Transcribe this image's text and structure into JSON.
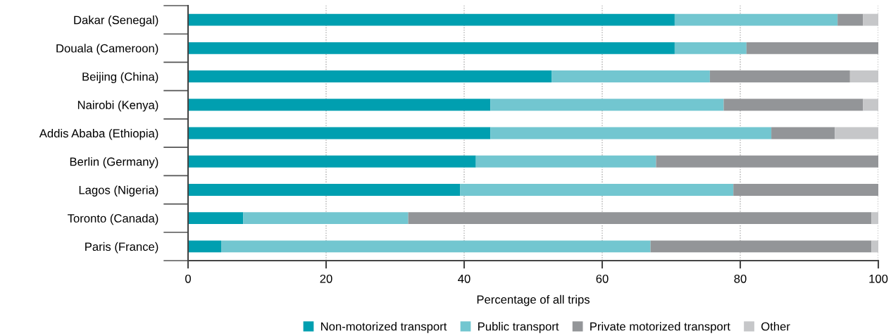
{
  "chart_data": {
    "type": "bar",
    "orientation": "horizontal",
    "stacked": true,
    "xlabel": "Percentage of all trips",
    "categories": [
      "Dakar (Senegal)",
      "Douala (Cameroon)",
      "Beijing (China)",
      "Nairobi (Kenya)",
      "Addis Ababa (Ethiopia)",
      "Berlin (Germany)",
      "Lagos (Nigeria)",
      "Toronto (Canada)",
      "Paris (France)"
    ],
    "series": [
      {
        "name": "Non-motorized transport",
        "color": "#009fb0",
        "values": [
          70.5,
          70.5,
          52.7,
          43.8,
          43.8,
          41.7,
          39.4,
          8.0,
          4.8
        ]
      },
      {
        "name": "Public transport",
        "color": "#72c6d0",
        "values": [
          23.6,
          10.4,
          22.9,
          33.8,
          40.7,
          26.1,
          39.6,
          23.9,
          62.2
        ]
      },
      {
        "name": "Private motorized transport",
        "color": "#939598",
        "values": [
          3.7,
          19.1,
          20.3,
          20.2,
          9.2,
          32.2,
          21.0,
          67.1,
          32.0
        ]
      },
      {
        "name": "Other",
        "color": "#c6c7c9",
        "values": [
          2.2,
          0,
          4.1,
          2.2,
          6.3,
          0,
          0,
          1.0,
          1.0
        ]
      }
    ],
    "xlim": [
      0,
      100
    ],
    "xticks": [
      0,
      20,
      40,
      60,
      80,
      100
    ],
    "grid": "x",
    "legend": "bottom"
  }
}
